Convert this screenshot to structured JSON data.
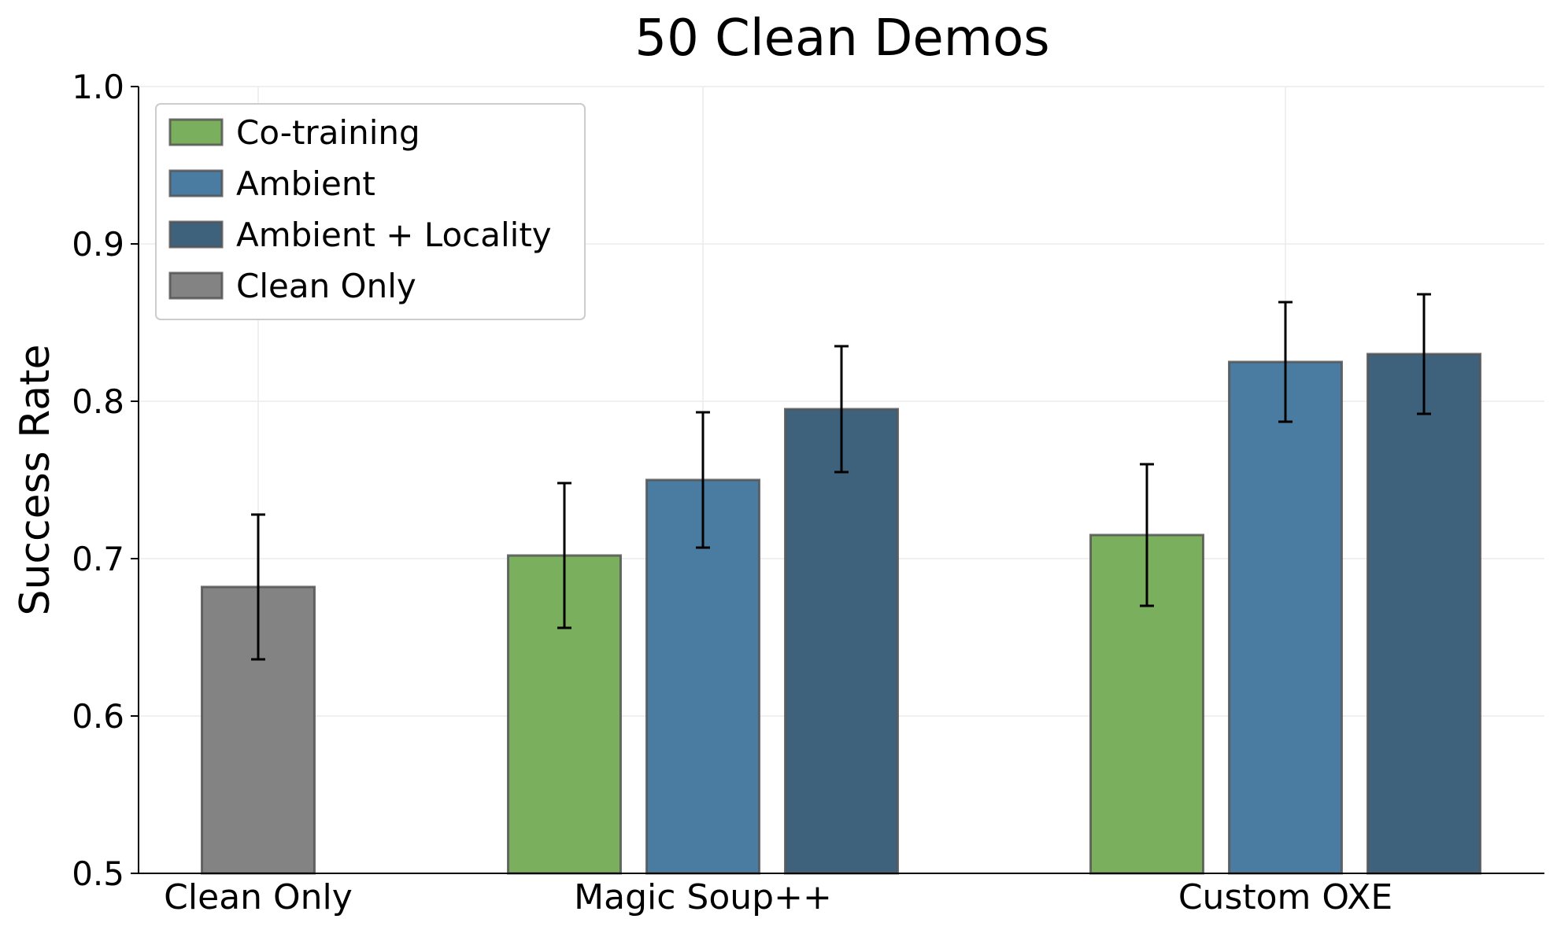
{
  "chart_data": {
    "type": "bar",
    "title": "50 Clean Demos",
    "xlabel": "",
    "ylabel": "Success Rate",
    "ylim": [
      0.5,
      1.0
    ],
    "yticks": [
      0.5,
      0.6,
      0.7,
      0.8,
      0.9,
      1.0
    ],
    "yticklabels": [
      "0.5",
      "0.6",
      "0.7",
      "0.8",
      "0.9",
      "1.0"
    ],
    "grid": true,
    "legend_position": "top-left",
    "categories": [
      "Clean Only",
      "Magic Soup++",
      "Custom OXE"
    ],
    "series": [
      {
        "name": "Co-training",
        "color": "#7aaf5d",
        "values": [
          null,
          0.702,
          0.715
        ],
        "errors": [
          null,
          0.046,
          0.045
        ]
      },
      {
        "name": "Ambient",
        "color": "#4a7ba0",
        "values": [
          null,
          0.75,
          0.825
        ],
        "errors": [
          null,
          0.043,
          0.038
        ]
      },
      {
        "name": "Ambient + Locality",
        "color": "#3e627c",
        "values": [
          null,
          0.795,
          0.83
        ],
        "errors": [
          null,
          0.04,
          0.038
        ]
      },
      {
        "name": "Clean Only",
        "color": "#838383",
        "values": [
          0.682,
          null,
          null
        ],
        "errors": [
          0.046,
          null,
          null
        ]
      }
    ]
  }
}
